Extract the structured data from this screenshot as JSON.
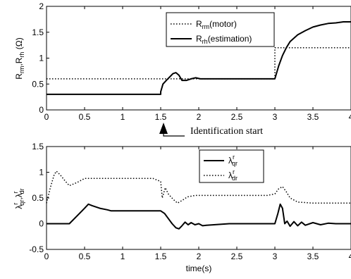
{
  "chart_data": [
    {
      "type": "line",
      "ylabel": "R_rm,R_rh (Ω)",
      "xlim": [
        0,
        4
      ],
      "ylim": [
        0,
        2
      ],
      "xticks": [
        "0",
        "0.5",
        "1",
        "1.5",
        "2",
        "2.5",
        "3",
        "3.5",
        "4"
      ],
      "yticks": [
        "0",
        "0.5",
        "1",
        "1.5",
        "2"
      ],
      "legend_position": "top-right",
      "series": [
        {
          "name": "R_rm(motor)",
          "style": "dotted",
          "x": [
            0,
            3.0,
            3.0,
            4.0
          ],
          "y": [
            0.6,
            0.6,
            1.2,
            1.2
          ]
        },
        {
          "name": "R_rh(estimation)",
          "style": "solid",
          "x": [
            0,
            1.5,
            1.5,
            1.53,
            1.58,
            1.62,
            1.66,
            1.7,
            1.74,
            1.78,
            1.84,
            1.9,
            1.96,
            2.02,
            2.1,
            2.3,
            2.6,
            2.9,
            3.0,
            3.05,
            3.1,
            3.15,
            3.2,
            3.3,
            3.4,
            3.5,
            3.6,
            3.7,
            3.8,
            3.9,
            4.0
          ],
          "y": [
            0.3,
            0.3,
            0.35,
            0.5,
            0.58,
            0.64,
            0.7,
            0.72,
            0.67,
            0.57,
            0.57,
            0.6,
            0.62,
            0.6,
            0.6,
            0.6,
            0.6,
            0.6,
            0.6,
            0.85,
            1.05,
            1.2,
            1.32,
            1.45,
            1.53,
            1.6,
            1.64,
            1.67,
            1.68,
            1.7,
            1.7
          ]
        }
      ],
      "annotation": "Identification start",
      "annotation_x": 1.5
    },
    {
      "type": "line",
      "xlabel": "time(s)",
      "ylabel": "λ^r_qr, λ^r_dr",
      "xlim": [
        0,
        4
      ],
      "ylim": [
        -0.5,
        1.5
      ],
      "xticks": [
        "0",
        "0.5",
        "1",
        "1.5",
        "2",
        "2.5",
        "3",
        "3.5",
        "4"
      ],
      "yticks": [
        "-0.5",
        "0",
        "0.5",
        "1",
        "1.5"
      ],
      "legend_position": "top-center",
      "series": [
        {
          "name": "λ^r_qr",
          "style": "solid",
          "x": [
            0,
            0.3,
            0.4,
            0.5,
            0.55,
            0.6,
            0.7,
            0.8,
            0.85,
            1.0,
            1.2,
            1.5,
            1.55,
            1.6,
            1.65,
            1.7,
            1.74,
            1.78,
            1.82,
            1.86,
            1.9,
            1.95,
            2.0,
            2.05,
            2.1,
            2.2,
            2.4,
            2.6,
            2.8,
            3.0,
            3.04,
            3.07,
            3.1,
            3.13,
            3.16,
            3.2,
            3.25,
            3.3,
            3.35,
            3.4,
            3.5,
            3.6,
            3.7,
            3.8,
            4.0
          ],
          "y": [
            0,
            0,
            0.15,
            0.3,
            0.38,
            0.35,
            0.3,
            0.27,
            0.25,
            0.25,
            0.25,
            0.25,
            0.2,
            0.1,
            0.0,
            -0.08,
            -0.1,
            -0.04,
            0.03,
            -0.02,
            0.02,
            -0.02,
            0.0,
            -0.04,
            -0.03,
            -0.02,
            0.0,
            0.0,
            0.0,
            0.0,
            0.2,
            0.38,
            0.3,
            0.0,
            0.05,
            -0.05,
            0.04,
            -0.04,
            0.03,
            -0.03,
            0.02,
            -0.02,
            0.01,
            0.0,
            0.0
          ]
        },
        {
          "name": "λ^r_dr",
          "style": "dotted",
          "x": [
            0,
            0.05,
            0.1,
            0.13,
            0.18,
            0.25,
            0.3,
            0.4,
            0.5,
            0.6,
            0.8,
            1.0,
            1.2,
            1.4,
            1.5,
            1.52,
            1.56,
            1.6,
            1.66,
            1.72,
            1.78,
            1.85,
            1.95,
            2.1,
            2.3,
            2.6,
            2.9,
            3.0,
            3.05,
            3.1,
            3.15,
            3.2,
            3.3,
            3.5,
            3.7,
            4.0
          ],
          "y": [
            0.4,
            0.7,
            0.95,
            1.02,
            0.95,
            0.82,
            0.74,
            0.8,
            0.88,
            0.88,
            0.88,
            0.88,
            0.88,
            0.88,
            0.82,
            0.5,
            0.7,
            0.58,
            0.48,
            0.4,
            0.45,
            0.52,
            0.55,
            0.55,
            0.55,
            0.55,
            0.55,
            0.58,
            0.68,
            0.72,
            0.62,
            0.5,
            0.42,
            0.4,
            0.4,
            0.4
          ]
        }
      ]
    }
  ]
}
